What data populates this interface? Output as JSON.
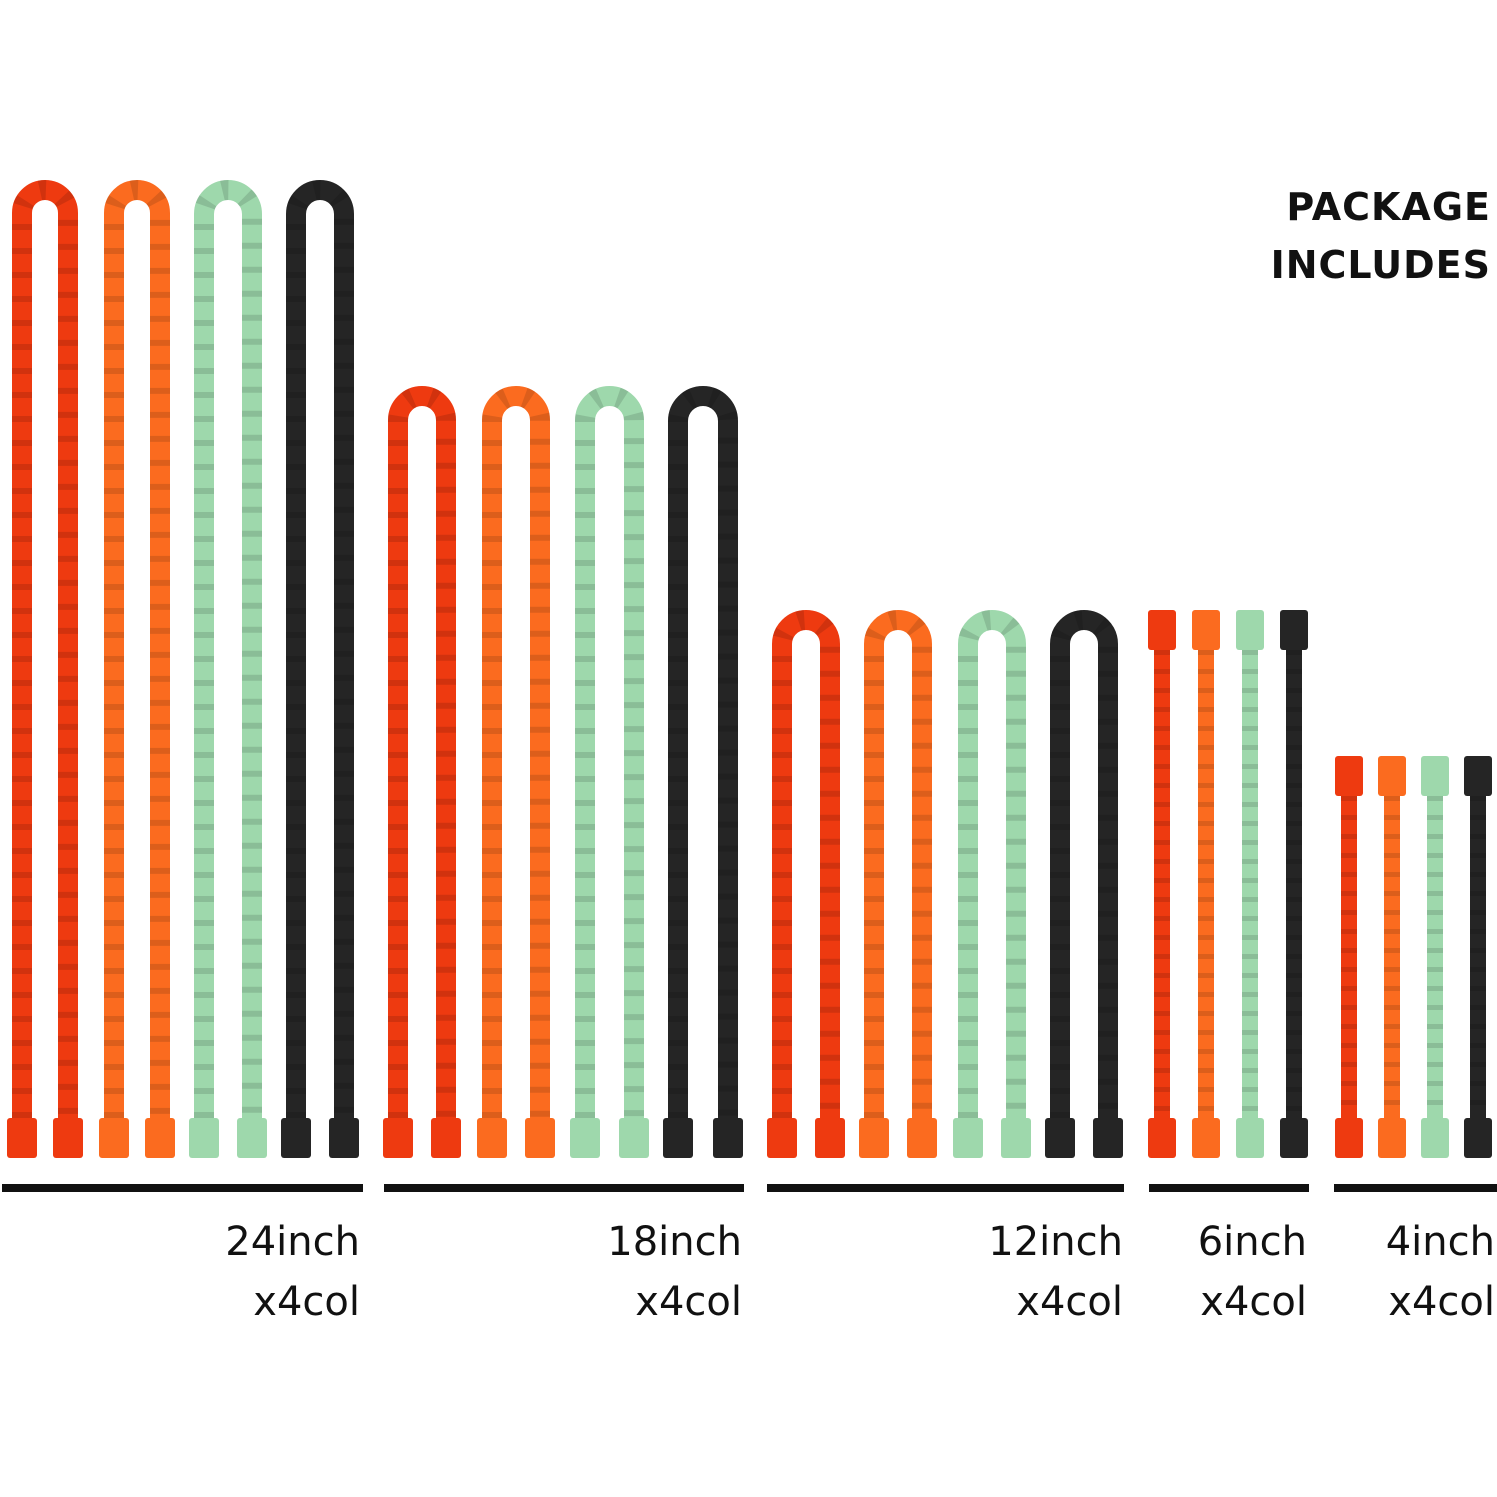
{
  "title": {
    "line1": "PACKAGE",
    "line2": "INCLUDES"
  },
  "colors": {
    "red": "#ee3a10",
    "orange": "#fb6b1f",
    "green": "#9ed8ac",
    "black": "#252525"
  },
  "groups": [
    {
      "size": "24inch",
      "count": "x4col"
    },
    {
      "size": "18inch",
      "count": "x4col"
    },
    {
      "size": "12inch",
      "count": "x4col"
    },
    {
      "size": "6inch",
      "count": "x4col"
    },
    {
      "size": "4inch",
      "count": "x4col"
    }
  ]
}
